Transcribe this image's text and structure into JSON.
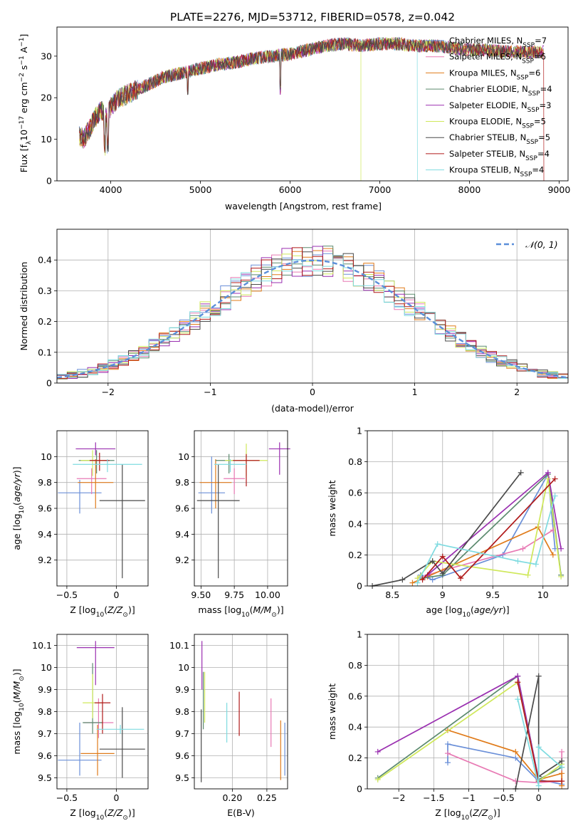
{
  "figure_title": "PLATE=2276, MJD=53712, FIBERID=0578, z=0.042",
  "colors": {
    "Chabrier MILES": "#6a8fd8",
    "Salpeter MILES": "#e87ab4",
    "Kroupa MILES": "#e07b1a",
    "Chabrier ELODIE": "#5b8a6e",
    "Salpeter ELODIE": "#9a2fb0",
    "Kroupa ELODIE": "#cfe85a",
    "Chabrier STELIB": "#4a4a4a",
    "Salpeter STELIB": "#b01a1a",
    "Kroupa STELIB": "#7fdbe0",
    "normal": "#5b8fd9",
    "grid": "#b0b0b0"
  },
  "legend_models": [
    {
      "key": "Chabrier MILES",
      "label": "Chabrier MILES, N",
      "sub": "SSP",
      "tail": "=7"
    },
    {
      "key": "Salpeter MILES",
      "label": "Salpeter MILES, N",
      "sub": "SSP",
      "tail": "=6"
    },
    {
      "key": "Kroupa MILES",
      "label": "Kroupa MILES, N",
      "sub": "SSP",
      "tail": "=6"
    },
    {
      "key": "Chabrier ELODIE",
      "label": "Chabrier ELODIE, N",
      "sub": "SSP",
      "tail": "=4"
    },
    {
      "key": "Salpeter ELODIE",
      "label": "Salpeter ELODIE, N",
      "sub": "SSP",
      "tail": "=3"
    },
    {
      "key": "Kroupa ELODIE",
      "label": "Kroupa ELODIE, N",
      "sub": "SSP",
      "tail": "=5"
    },
    {
      "key": "Chabrier STELIB",
      "label": "Chabrier STELIB, N",
      "sub": "SSP",
      "tail": "=5"
    },
    {
      "key": "Salpeter STELIB",
      "label": "Salpeter STELIB, N",
      "sub": "SSP",
      "tail": "=4"
    },
    {
      "key": "Kroupa STELIB",
      "label": "Kroupa STELIB, N",
      "sub": "SSP",
      "tail": "=4"
    }
  ],
  "chart_data": [
    {
      "id": "spectrum",
      "type": "line",
      "xlabel": "wavelength [Angstrom, rest frame]",
      "ylabel": "Flux [fλ10⁻¹⁷ erg cm⁻² s⁻¹ A⁻¹]",
      "xlim": [
        3400,
        9100
      ],
      "ylim": [
        0,
        37
      ],
      "xticks": [
        4000,
        5000,
        6000,
        7000,
        8000,
        9000
      ],
      "yticks": [
        0,
        10,
        20,
        30
      ],
      "series_common": {
        "x": [
          3650,
          3700,
          3750,
          3800,
          3850,
          3900,
          3950,
          4000,
          4100,
          4200,
          4300,
          4400,
          4500,
          4600,
          4700,
          4800,
          4900,
          5000,
          5200,
          5400,
          5600,
          5800,
          6000,
          6200,
          6400,
          6600,
          6800,
          7000,
          7200,
          7400,
          7600,
          7800,
          8000,
          8200,
          8400,
          8600,
          8800
        ],
        "y": [
          11,
          10,
          12,
          14,
          16,
          17,
          15,
          18,
          20,
          21,
          22,
          23,
          24,
          25,
          25.5,
          26,
          26.5,
          27,
          28,
          28.5,
          29.5,
          30,
          30.5,
          31.5,
          32.5,
          33,
          32.5,
          33,
          33,
          32.5,
          32.5,
          32,
          31.5,
          31.5,
          31,
          31,
          31
        ]
      },
      "notes": "overlapping model spectra; Kroupa STELIB ends ~7400 A, others to ~8800 A"
    },
    {
      "id": "residuals",
      "type": "bar",
      "xlabel": "(data-model)/error",
      "ylabel": "Normed distribution",
      "xlim": [
        -2.5,
        2.5
      ],
      "ylim": [
        0,
        0.5
      ],
      "xticks": [
        -2,
        -1,
        0,
        1,
        2
      ],
      "yticks": [
        0,
        0.1,
        0.2,
        0.3,
        0.4
      ],
      "legend": "𝒩(0, 1)",
      "bin_width": 0.1,
      "bin_start": -2.5
    },
    {
      "id": "age_vs_Z",
      "type": "scatter",
      "xlabel": "Z [log10(Z/Z⊙)]",
      "ylabel": "age [log10(age/yr)]",
      "xlim": [
        -0.6,
        0.32
      ],
      "ylim": [
        9.0,
        10.2
      ],
      "xticks": [
        -0.5,
        0.0
      ],
      "yticks": [
        9.2,
        9.4,
        9.6,
        9.8,
        10.0
      ],
      "points": [
        {
          "key": "Chabrier MILES",
          "x": -0.37,
          "y": 9.72,
          "xerr": 0.22,
          "yerr": [
            0.16,
            0.1
          ]
        },
        {
          "key": "Salpeter MILES",
          "x": -0.25,
          "y": 9.83,
          "xerr": 0.15,
          "yerr": [
            0.12,
            0.08
          ]
        },
        {
          "key": "Kroupa MILES",
          "x": -0.21,
          "y": 9.8,
          "xerr": 0.18,
          "yerr": [
            0.2,
            0.18
          ]
        },
        {
          "key": "Chabrier ELODIE",
          "x": -0.2,
          "y": 9.97,
          "xerr": 0.18,
          "yerr": [
            0.1,
            0.08
          ]
        },
        {
          "key": "Salpeter ELODIE",
          "x": -0.21,
          "y": 10.06,
          "xerr": 0.2,
          "yerr": [
            0.05,
            0.05
          ]
        },
        {
          "key": "Kroupa ELODIE",
          "x": -0.24,
          "y": 9.97,
          "xerr": 0.12,
          "yerr": [
            0.12,
            0.08
          ]
        },
        {
          "key": "Chabrier STELIB",
          "x": 0.06,
          "y": 9.66,
          "xerr": 0.23,
          "yerr": [
            0.6,
            0.28
          ]
        },
        {
          "key": "Salpeter STELIB",
          "x": -0.17,
          "y": 9.97,
          "xerr": 0.1,
          "yerr": [
            0.08,
            0.06
          ]
        },
        {
          "key": "Kroupa STELIB",
          "x": -0.09,
          "y": 9.94,
          "xerr": 0.35,
          "yerr": [
            0.06,
            0.04
          ]
        }
      ]
    },
    {
      "id": "age_vs_mass",
      "type": "scatter",
      "xlabel": "mass [log10(M/M⊙)]",
      "ylabel": "",
      "xlim": [
        9.45,
        10.15
      ],
      "ylim": [
        9.0,
        10.2
      ],
      "xticks": [
        9.5,
        9.75,
        10.0
      ],
      "tick_labels": [
        "9.50",
        "9.75",
        "10.00"
      ],
      "yticks": [
        9.2,
        9.4,
        9.6,
        9.8,
        10.0
      ],
      "points": [
        {
          "key": "Chabrier MILES",
          "x": 9.58,
          "y": 9.72,
          "xerr": 0.1,
          "yerr": [
            0.16,
            0.28
          ]
        },
        {
          "key": "Salpeter MILES",
          "x": 9.75,
          "y": 9.83,
          "xerr": 0.08,
          "yerr": [
            0.12,
            0.08
          ]
        },
        {
          "key": "Kroupa MILES",
          "x": 9.61,
          "y": 9.8,
          "xerr": 0.12,
          "yerr": [
            0.2,
            0.18
          ]
        },
        {
          "key": "Chabrier ELODIE",
          "x": 9.71,
          "y": 9.97,
          "xerr": 0.1,
          "yerr": [
            0.1,
            0.05
          ]
        },
        {
          "key": "Salpeter ELODIE",
          "x": 10.09,
          "y": 10.06,
          "xerr": 0.08,
          "yerr": [
            0.2,
            0.05
          ]
        },
        {
          "key": "Kroupa ELODIE",
          "x": 9.84,
          "y": 9.97,
          "xerr": 0.16,
          "yerr": [
            0.12,
            0.13
          ]
        },
        {
          "key": "Chabrier STELIB",
          "x": 9.63,
          "y": 9.66,
          "xerr": 0.16,
          "yerr": [
            0.6,
            0.28
          ]
        },
        {
          "key": "Salpeter STELIB",
          "x": 9.84,
          "y": 9.97,
          "xerr": 0.1,
          "yerr": [
            0.2,
            0.05
          ]
        },
        {
          "key": "Kroupa STELIB",
          "x": 9.72,
          "y": 9.94,
          "xerr": 0.12,
          "yerr": [
            0.06,
            0.04
          ]
        }
      ]
    },
    {
      "id": "mass_vs_Z",
      "type": "scatter",
      "xlabel": "Z [log10(Z/Z⊙)]",
      "ylabel": "mass [log10(M/M⊙)]",
      "xlim": [
        -0.6,
        0.32
      ],
      "ylim": [
        9.45,
        10.15
      ],
      "xticks": [
        -0.5,
        0.0
      ],
      "yticks": [
        9.5,
        9.6,
        9.7,
        9.8,
        9.9,
        10.0,
        10.1
      ],
      "points": [
        {
          "key": "Chabrier MILES",
          "x": -0.37,
          "y": 9.58,
          "xerr": 0.22,
          "yerr": [
            0.07,
            0.17
          ]
        },
        {
          "key": "Salpeter MILES",
          "x": -0.18,
          "y": 9.75,
          "xerr": 0.15,
          "yerr": [
            0.07,
            0.11
          ]
        },
        {
          "key": "Kroupa MILES",
          "x": -0.19,
          "y": 9.61,
          "xerr": 0.17,
          "yerr": [
            0.1,
            0.13
          ]
        },
        {
          "key": "Chabrier ELODIE",
          "x": -0.24,
          "y": 9.75,
          "xerr": 0.1,
          "yerr": [
            0.05,
            0.27
          ]
        },
        {
          "key": "Salpeter ELODIE",
          "x": -0.21,
          "y": 10.09,
          "xerr": 0.19,
          "yerr": [
            0.17,
            0.03
          ]
        },
        {
          "key": "Kroupa ELODIE",
          "x": -0.24,
          "y": 9.84,
          "xerr": 0.1,
          "yerr": [
            0.07,
            0.13
          ]
        },
        {
          "key": "Chabrier STELIB",
          "x": 0.06,
          "y": 9.63,
          "xerr": 0.23,
          "yerr": [
            0.13,
            0.19
          ]
        },
        {
          "key": "Salpeter STELIB",
          "x": -0.14,
          "y": 9.84,
          "xerr": 0.08,
          "yerr": [
            0.14,
            0.04
          ]
        },
        {
          "key": "Kroupa STELIB",
          "x": 0.04,
          "y": 9.72,
          "xerr": 0.24,
          "yerr": [
            0.02,
            0.02
          ]
        }
      ]
    },
    {
      "id": "mass_vs_EBV",
      "type": "scatter",
      "xlabel": "E(B-V)",
      "ylabel": "",
      "xlim": [
        0.145,
        0.28
      ],
      "ylim": [
        9.45,
        10.15
      ],
      "xticks": [
        0.2,
        0.25
      ],
      "tick_labels": [
        "0.20",
        "0.25"
      ],
      "yticks": [
        9.5,
        9.6,
        9.7,
        9.8,
        9.9,
        10.0,
        10.1
      ],
      "points": [
        {
          "key": "Chabrier MILES",
          "x": 0.276,
          "y": 9.58,
          "yerr": [
            0.07,
            0.17
          ]
        },
        {
          "key": "Salpeter MILES",
          "x": 0.256,
          "y": 9.75,
          "yerr": [
            0.11,
            0.11
          ]
        },
        {
          "key": "Kroupa MILES",
          "x": 0.27,
          "y": 9.61,
          "yerr": [
            0.12,
            0.15
          ]
        },
        {
          "key": "Chabrier ELODIE",
          "x": 0.158,
          "y": 9.84,
          "yerr": [
            0.12,
            0.14
          ]
        },
        {
          "key": "Salpeter ELODIE",
          "x": 0.156,
          "y": 10.0,
          "yerr": [
            0.1,
            0.12
          ]
        },
        {
          "key": "Kroupa ELODIE",
          "x": 0.16,
          "y": 9.86,
          "yerr": [
            0.11,
            0.12
          ]
        },
        {
          "key": "Chabrier STELIB",
          "x": 0.155,
          "y": 9.65,
          "yerr": [
            0.17,
            0.16
          ]
        },
        {
          "key": "Salpeter STELIB",
          "x": 0.21,
          "y": 9.76,
          "yerr": [
            0.07,
            0.13
          ]
        },
        {
          "key": "Kroupa STELIB",
          "x": 0.192,
          "y": 9.75,
          "yerr": [
            0.09,
            0.09
          ]
        }
      ]
    },
    {
      "id": "mw_vs_age",
      "type": "line",
      "xlabel": "age [log10(age/yr)]",
      "ylabel": "mass weight",
      "xlim": [
        8.25,
        10.25
      ],
      "ylim": [
        0,
        1.0
      ],
      "xticks": [
        8.5,
        9.0,
        9.5,
        10.0
      ],
      "yticks": [
        0,
        0.2,
        0.4,
        0.6,
        0.8,
        1.0
      ],
      "series": [
        {
          "key": "Chabrier MILES",
          "x": [
            8.78,
            8.9,
            9.6,
            10.05,
            10.12
          ],
          "y": [
            0.07,
            0.04,
            0.2,
            0.72,
            0.24
          ]
        },
        {
          "key": "Salpeter MILES",
          "x": [
            8.75,
            9.0,
            9.8,
            10.1
          ],
          "y": [
            0.05,
            0.1,
            0.24,
            0.36
          ]
        },
        {
          "key": "Kroupa MILES",
          "x": [
            8.7,
            8.85,
            9.95,
            10.1
          ],
          "y": [
            0.02,
            0.06,
            0.38,
            0.2
          ]
        },
        {
          "key": "Chabrier ELODIE",
          "x": [
            8.8,
            9.0,
            10.05,
            10.18
          ],
          "y": [
            0.05,
            0.07,
            0.72,
            0.07
          ]
        },
        {
          "key": "Salpeter ELODIE",
          "x": [
            8.85,
            10.05,
            10.18
          ],
          "y": [
            0.07,
            0.73,
            0.24
          ]
        },
        {
          "key": "Kroupa ELODIE",
          "x": [
            8.75,
            8.9,
            9.85,
            10.05,
            10.18
          ],
          "y": [
            0.05,
            0.16,
            0.07,
            0.69,
            0.06
          ]
        },
        {
          "key": "Chabrier STELIB",
          "x": [
            8.3,
            8.6,
            8.9,
            9.0,
            9.78
          ],
          "y": [
            0.0,
            0.04,
            0.16,
            0.08,
            0.73
          ]
        },
        {
          "key": "Salpeter STELIB",
          "x": [
            8.8,
            9.0,
            9.18,
            10.12
          ],
          "y": [
            0.04,
            0.19,
            0.05,
            0.69
          ]
        },
        {
          "key": "Kroupa STELIB",
          "x": [
            8.75,
            8.95,
            9.75,
            9.93,
            10.12
          ],
          "y": [
            0.02,
            0.27,
            0.16,
            0.14,
            0.58
          ]
        }
      ]
    },
    {
      "id": "mw_vs_Z",
      "type": "line",
      "xlabel": "Z [log10(Z/Z⊙)]",
      "ylabel": "mass weight",
      "xlim": [
        -2.45,
        0.42
      ],
      "ylim": [
        0,
        1.0
      ],
      "xticks": [
        -2.0,
        -1.5,
        -1.0,
        -0.5,
        0.0
      ],
      "yticks": [
        0,
        0.2,
        0.4,
        0.6,
        0.8,
        1.0
      ],
      "series": [
        {
          "key": "Chabrier MILES",
          "x": [
            -1.3,
            -1.3,
            -0.33,
            0.0,
            0.0,
            0.33
          ],
          "y": [
            0.17,
            0.29,
            0.2,
            0.05,
            0.06,
            0.03
          ]
        },
        {
          "key": "Salpeter MILES",
          "x": [
            -1.3,
            -0.33,
            0.0,
            0.33,
            0.33
          ],
          "y": [
            0.23,
            0.05,
            0.04,
            0.05,
            0.24
          ]
        },
        {
          "key": "Kroupa MILES",
          "x": [
            -1.3,
            -0.33,
            0.0,
            0.33,
            0.33
          ],
          "y": [
            0.38,
            0.24,
            0.06,
            0.1,
            0.02
          ]
        },
        {
          "key": "Chabrier ELODIE",
          "x": [
            -2.3,
            -0.3,
            0.0,
            0.33
          ],
          "y": [
            0.07,
            0.73,
            0.06,
            0.14
          ]
        },
        {
          "key": "Salpeter ELODIE",
          "x": [
            -2.3,
            -0.3,
            0.0
          ],
          "y": [
            0.24,
            0.73,
            0.06
          ]
        },
        {
          "key": "Kroupa ELODIE",
          "x": [
            -2.3,
            -0.3,
            0.0,
            0.33
          ],
          "y": [
            0.06,
            0.69,
            0.05,
            0.16
          ]
        },
        {
          "key": "Chabrier STELIB",
          "x": [
            -0.33,
            0.0,
            0.0,
            0.33
          ],
          "y": [
            0.0,
            0.73,
            0.08,
            0.18
          ]
        },
        {
          "key": "Salpeter STELIB",
          "x": [
            -0.3,
            0.0,
            0.33
          ],
          "y": [
            0.69,
            0.05,
            0.05
          ]
        },
        {
          "key": "Kroupa STELIB",
          "x": [
            -0.3,
            0.0,
            0.0,
            0.33
          ],
          "y": [
            0.58,
            0.02,
            0.27,
            0.14
          ]
        }
      ]
    }
  ]
}
